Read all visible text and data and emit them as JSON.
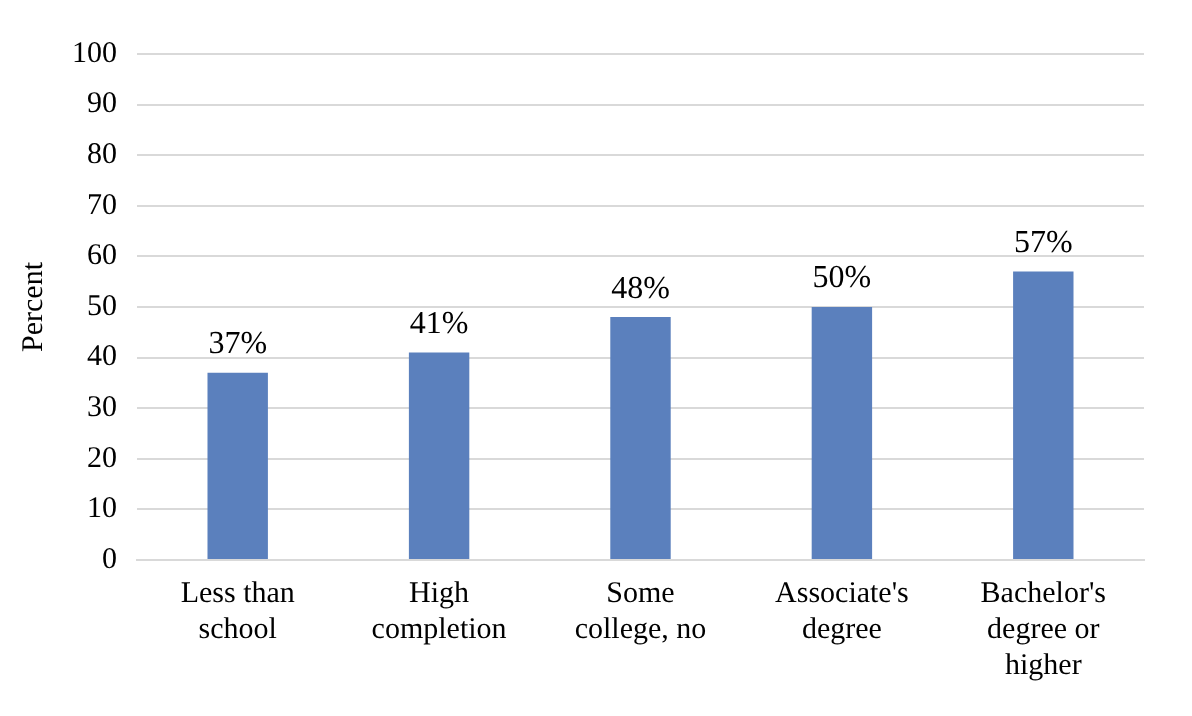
{
  "chart_data": {
    "type": "bar",
    "ylabel": "Percent",
    "categories": [
      "Less than school",
      "High completion",
      "Some college, no",
      "Associate's degree",
      "Bachelor's degree or higher"
    ],
    "values": [
      37,
      41,
      48,
      50,
      57
    ],
    "value_labels": [
      "37%",
      "41%",
      "48%",
      "50%",
      "57%"
    ],
    "color": "#5b80bd",
    "ylim": [
      0,
      100
    ],
    "yticks": [
      0,
      10,
      20,
      30,
      40,
      50,
      60,
      70,
      80,
      90,
      100
    ],
    "grid": "y"
  }
}
